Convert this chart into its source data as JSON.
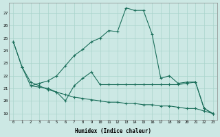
{
  "xlabel": "Humidex (Indice chaleur)",
  "bg_color": "#cce8e4",
  "grid_color": "#aad4cc",
  "line_color": "#1a6e5a",
  "xlim": [
    -0.5,
    23.5
  ],
  "ylim": [
    18.5,
    27.8
  ],
  "x_ticks": [
    0,
    1,
    2,
    3,
    4,
    5,
    6,
    7,
    8,
    9,
    10,
    11,
    12,
    13,
    14,
    15,
    16,
    17,
    18,
    19,
    20,
    21,
    22,
    23
  ],
  "y_ticks": [
    19,
    20,
    21,
    22,
    23,
    24,
    25,
    26,
    27
  ],
  "line1_x": [
    0,
    1,
    2,
    3,
    4,
    5,
    6,
    7,
    8,
    9,
    10,
    11,
    12,
    13,
    14,
    15,
    16,
    17,
    18,
    19,
    20,
    21,
    22,
    23
  ],
  "line1_y": [
    24.7,
    22.7,
    21.2,
    21.4,
    21.6,
    22.0,
    22.8,
    23.6,
    24.1,
    24.7,
    25.0,
    25.6,
    25.5,
    27.4,
    27.2,
    27.2,
    25.3,
    21.8,
    22.0,
    21.4,
    21.5,
    21.5,
    19.4,
    19.0
  ],
  "line2_x": [
    2,
    3,
    4,
    5,
    6,
    7,
    8,
    9,
    10,
    11,
    12,
    13,
    14,
    15,
    16,
    17,
    18,
    19,
    20,
    21,
    22,
    23
  ],
  "line2_y": [
    21.2,
    21.1,
    21.0,
    20.7,
    20.0,
    21.2,
    21.8,
    22.3,
    21.3,
    21.3,
    21.3,
    21.3,
    21.3,
    21.3,
    21.3,
    21.3,
    21.3,
    21.3,
    21.4,
    21.5,
    19.4,
    19.0
  ],
  "line3_x": [
    0,
    1,
    2,
    3,
    4,
    5,
    6,
    7,
    8,
    9,
    10,
    11,
    12,
    13,
    14,
    15,
    16,
    17,
    18,
    19,
    20,
    21,
    22,
    23
  ],
  "line3_y": [
    24.7,
    22.7,
    21.5,
    21.2,
    20.9,
    20.7,
    20.5,
    20.3,
    20.2,
    20.1,
    20.0,
    19.9,
    19.9,
    19.8,
    19.8,
    19.7,
    19.7,
    19.6,
    19.6,
    19.5,
    19.4,
    19.4,
    19.2,
    19.0
  ]
}
